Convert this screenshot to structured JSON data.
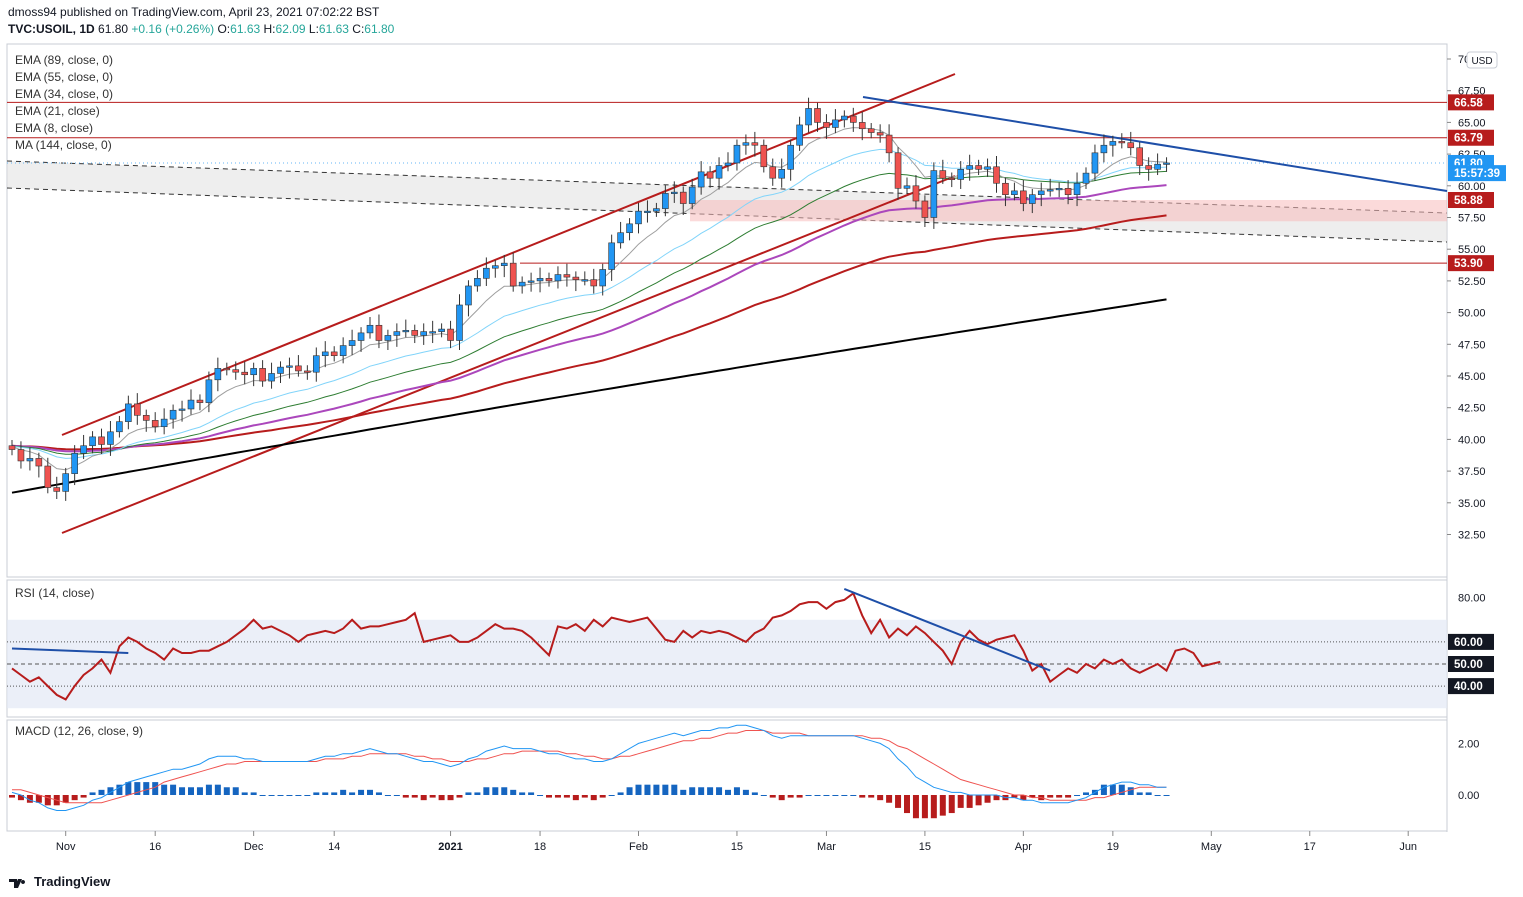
{
  "header": {
    "publisher_line": "dmoss94 published on TradingView.com, April 23, 2021 07:02:22 BST",
    "symbol": "TVC:USOIL, 1D",
    "last": "61.80",
    "change": "+0.16 (+0.26%)",
    "o_label": "O:",
    "o_value": "61.63",
    "h_label": "H:",
    "h_value": "62.09",
    "l_label": "L:",
    "l_value": "61.63",
    "c_label": "C:",
    "c_value": "61.80"
  },
  "price_indicators": [
    "EMA (89, close, 0)",
    "EMA (55, close, 0)",
    "EMA (34, close, 0)",
    "EMA (21, close)",
    "EMA (8, close)",
    "MA (144, close, 0)"
  ],
  "currency": "USD",
  "footer": {
    "brand": "TradingView"
  },
  "colors": {
    "up": "#2196f3",
    "down": "#ef5350",
    "red_line": "#b71c1c",
    "blue_line": "#1e4fa8",
    "ema8": "#9e9e9e",
    "ema21": "#81d4fa",
    "ema34": "#2e7d32",
    "ema55": "#ab47bc",
    "ema89": "#b71c1c",
    "ma144": "#000000",
    "rsi": "#b71c1c",
    "macd": "#2196f3",
    "signal": "#ef5350"
  },
  "chart_data": [
    {
      "type": "candlestick",
      "title": "TVC:USOIL, 1D",
      "x_ticks": [
        "Nov",
        "16",
        "Dec",
        "14",
        "2021",
        "18",
        "Feb",
        "15",
        "Mar",
        "15",
        "Apr",
        "19",
        "May",
        "17",
        "Jun"
      ],
      "y_ticks": [
        "70.00",
        "67.50",
        "65.00",
        "62.50",
        "60.00",
        "57.50",
        "55.00",
        "52.50",
        "50.00",
        "47.50",
        "45.00",
        "42.50",
        "40.00",
        "37.50",
        "35.00",
        "32.50"
      ],
      "ylim": [
        31.5,
        71.5
      ],
      "price_labels": [
        {
          "text": "66.58",
          "value": 66.58,
          "style": "red"
        },
        {
          "text": "63.79",
          "value": 63.79,
          "style": "red"
        },
        {
          "text": "61.80",
          "value": 61.8,
          "style": "blue"
        },
        {
          "text": "15:57:39",
          "value": 61.0,
          "style": "blue"
        },
        {
          "text": "58.88",
          "value": 58.88,
          "style": "red"
        },
        {
          "text": "53.90",
          "value": 53.9,
          "style": "red"
        }
      ],
      "horizontal_levels": [
        66.58,
        63.79,
        53.9
      ],
      "start_close": 39.5,
      "closes": [
        39.2,
        38.3,
        38.5,
        37.9,
        36.2,
        35.9,
        37.3,
        38.9,
        39.5,
        40.2,
        39.6,
        40.6,
        41.4,
        42.8,
        41.9,
        41.5,
        41.0,
        41.6,
        42.3,
        42.4,
        43.1,
        42.9,
        44.7,
        45.6,
        45.5,
        45.3,
        45.1,
        45.6,
        44.6,
        45.2,
        45.7,
        45.8,
        45.4,
        45.3,
        46.6,
        46.9,
        46.6,
        47.4,
        47.8,
        48.4,
        49.0,
        47.8,
        48.2,
        48.5,
        48.6,
        48.2,
        48.5,
        48.5,
        48.7,
        47.8,
        50.6,
        52.1,
        52.7,
        53.5,
        53.7,
        53.9,
        52.1,
        52.4,
        52.5,
        52.7,
        52.5,
        53.0,
        52.8,
        52.6,
        52.6,
        52.1,
        53.4,
        55.5,
        56.3,
        57.0,
        58.0,
        58.0,
        58.2,
        59.4,
        59.5,
        58.6,
        59.9,
        61.1,
        60.6,
        61.6,
        61.8,
        63.2,
        63.4,
        63.2,
        61.5,
        60.6,
        61.3,
        63.2,
        64.8,
        66.1,
        65.0,
        64.6,
        65.2,
        65.5,
        65.0,
        64.5,
        64.2,
        64.0,
        62.6,
        59.8,
        60.0,
        58.8,
        57.5,
        61.2,
        60.6,
        60.5,
        61.3,
        61.6,
        61.3,
        61.5,
        60.2,
        59.3,
        59.6,
        58.6,
        59.3,
        59.6,
        59.7,
        59.8,
        59.3,
        60.2,
        61.0,
        62.6,
        63.2,
        63.5,
        63.4,
        63.0,
        61.6,
        61.3,
        61.7,
        61.8
      ],
      "rsi": {
        "title": "RSI (14, close)",
        "y_ticks": [
          "80.00"
        ],
        "levels": [
          {
            "text": "60.00",
            "value": 60
          },
          {
            "text": "50.00",
            "value": 50
          },
          {
            "text": "40.00",
            "value": 40
          }
        ],
        "ylim": [
          26,
          88
        ],
        "values": [
          48,
          45,
          42,
          44,
          40,
          36,
          34,
          40,
          45,
          48,
          52,
          46,
          58,
          62,
          60,
          57,
          55,
          52,
          57,
          55,
          55,
          56,
          56,
          58,
          60,
          63,
          66,
          70,
          66,
          67,
          65,
          63,
          60,
          63,
          64,
          65,
          64,
          66,
          70,
          66,
          67,
          67,
          68,
          69,
          70,
          73,
          60,
          61,
          62,
          63,
          60,
          60,
          62,
          65,
          68,
          66,
          66,
          65,
          62,
          58,
          54,
          67,
          66,
          68,
          65,
          70,
          67,
          71,
          70,
          69,
          70,
          71,
          66,
          61,
          60,
          65,
          62,
          65,
          64,
          65,
          64,
          62,
          60,
          64,
          66,
          71,
          72,
          74,
          77,
          78,
          78,
          75,
          78,
          79,
          82,
          72,
          64,
          70,
          62,
          66,
          63,
          67,
          64,
          60,
          56,
          50,
          60,
          65,
          61,
          59,
          61,
          62,
          63,
          56,
          47,
          50,
          42,
          45,
          48,
          46,
          50,
          48,
          52,
          50,
          52,
          48,
          46,
          48,
          50,
          47,
          56,
          57,
          55,
          49,
          50,
          51
        ],
        "trendline_values": [
          [
            93,
            84
          ],
          [
            116,
            47
          ]
        ],
        "left_trend": [
          [
            0,
            57
          ],
          [
            13,
            55
          ]
        ]
      },
      "macd": {
        "title": "MACD (12, 26, close, 9)",
        "y_ticks": [
          "2.00",
          "0.00"
        ],
        "ylim": [
          -1.4,
          3.0
        ],
        "macd": [
          0.1,
          0.0,
          -0.2,
          -0.3,
          -0.5,
          -0.6,
          -0.6,
          -0.5,
          -0.4,
          -0.2,
          -0.1,
          0.1,
          0.3,
          0.5,
          0.6,
          0.7,
          0.8,
          0.9,
          1.0,
          1.0,
          1.1,
          1.2,
          1.4,
          1.5,
          1.5,
          1.5,
          1.4,
          1.4,
          1.3,
          1.3,
          1.3,
          1.3,
          1.3,
          1.3,
          1.4,
          1.5,
          1.5,
          1.6,
          1.6,
          1.7,
          1.8,
          1.7,
          1.6,
          1.6,
          1.5,
          1.4,
          1.3,
          1.3,
          1.2,
          1.1,
          1.2,
          1.4,
          1.5,
          1.7,
          1.8,
          1.9,
          1.8,
          1.8,
          1.8,
          1.7,
          1.6,
          1.6,
          1.5,
          1.4,
          1.4,
          1.3,
          1.3,
          1.4,
          1.6,
          1.8,
          2.0,
          2.1,
          2.2,
          2.3,
          2.4,
          2.3,
          2.4,
          2.5,
          2.5,
          2.6,
          2.6,
          2.7,
          2.7,
          2.6,
          2.5,
          2.3,
          2.2,
          2.3,
          2.3,
          2.3,
          2.3,
          2.3,
          2.3,
          2.3,
          2.3,
          2.2,
          2.1,
          2.0,
          1.8,
          1.4,
          1.1,
          0.7,
          0.5,
          0.3,
          0.2,
          0.1,
          0.1,
          0.0,
          0.0,
          0.0,
          0.0,
          -0.1,
          -0.1,
          -0.2,
          -0.2,
          -0.3,
          -0.3,
          -0.3,
          -0.3,
          -0.2,
          -0.1,
          0.1,
          0.3,
          0.4,
          0.5,
          0.5,
          0.4,
          0.4,
          0.3,
          0.3
        ],
        "signal": [
          0.2,
          0.2,
          0.1,
          0.0,
          -0.1,
          -0.2,
          -0.3,
          -0.3,
          -0.3,
          -0.3,
          -0.3,
          -0.2,
          -0.1,
          0.0,
          0.1,
          0.2,
          0.3,
          0.5,
          0.6,
          0.7,
          0.8,
          0.9,
          1.0,
          1.1,
          1.2,
          1.2,
          1.3,
          1.3,
          1.3,
          1.3,
          1.3,
          1.3,
          1.3,
          1.3,
          1.3,
          1.4,
          1.4,
          1.4,
          1.5,
          1.5,
          1.6,
          1.6,
          1.6,
          1.6,
          1.6,
          1.5,
          1.5,
          1.4,
          1.4,
          1.3,
          1.3,
          1.3,
          1.4,
          1.4,
          1.5,
          1.6,
          1.6,
          1.7,
          1.7,
          1.7,
          1.7,
          1.7,
          1.6,
          1.6,
          1.5,
          1.5,
          1.4,
          1.4,
          1.5,
          1.5,
          1.6,
          1.7,
          1.8,
          1.9,
          2.0,
          2.1,
          2.1,
          2.2,
          2.2,
          2.3,
          2.4,
          2.4,
          2.5,
          2.5,
          2.5,
          2.4,
          2.4,
          2.4,
          2.4,
          2.3,
          2.3,
          2.3,
          2.3,
          2.3,
          2.3,
          2.3,
          2.2,
          2.2,
          2.1,
          1.9,
          1.8,
          1.6,
          1.4,
          1.2,
          1.0,
          0.8,
          0.6,
          0.5,
          0.4,
          0.3,
          0.2,
          0.1,
          0.0,
          0.0,
          -0.1,
          -0.1,
          -0.2,
          -0.2,
          -0.2,
          -0.2,
          -0.2,
          -0.1,
          -0.1,
          0.0,
          0.1,
          0.2,
          0.3,
          0.3,
          0.3,
          0.3
        ]
      }
    }
  ]
}
